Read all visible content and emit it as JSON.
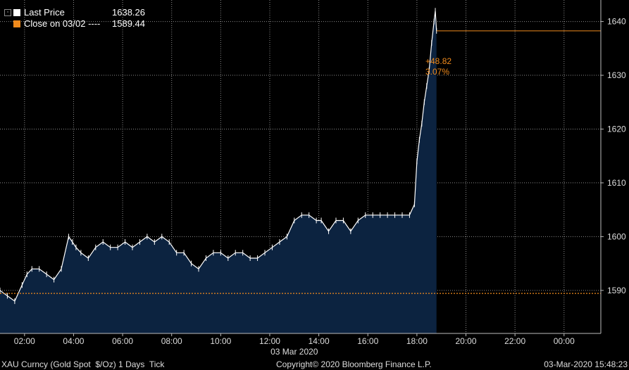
{
  "chart_data": {
    "type": "area",
    "title": "",
    "xlabel": "03 Mar 2020",
    "ylabel": "",
    "ylim": [
      1582,
      1644
    ],
    "y_ticks": [
      1590,
      1600,
      1610,
      1620,
      1630,
      1640
    ],
    "x_ticks": [
      "02:00",
      "04:00",
      "06:00",
      "08:00",
      "10:00",
      "12:00",
      "14:00",
      "16:00",
      "18:00",
      "20:00",
      "22:00",
      "00:00"
    ],
    "x_tick_hours": [
      2,
      4,
      6,
      8,
      10,
      12,
      14,
      16,
      18,
      20,
      22,
      24
    ],
    "xlim_hours": [
      1.0,
      25.5
    ],
    "grid": true,
    "series": [
      {
        "name": "Last Price",
        "color": "#ffffff",
        "fill": "#0c2340",
        "x_hours": [
          1.0,
          1.3,
          1.6,
          1.9,
          2.1,
          2.3,
          2.6,
          2.9,
          3.2,
          3.5,
          3.8,
          3.95,
          4.1,
          4.3,
          4.6,
          4.9,
          5.2,
          5.5,
          5.8,
          6.1,
          6.4,
          6.7,
          7.0,
          7.3,
          7.6,
          7.9,
          8.2,
          8.5,
          8.8,
          9.1,
          9.4,
          9.7,
          10.0,
          10.3,
          10.6,
          10.9,
          11.2,
          11.5,
          11.8,
          12.1,
          12.4,
          12.7,
          13.0,
          13.3,
          13.6,
          13.9,
          14.1,
          14.4,
          14.7,
          15.0,
          15.3,
          15.6,
          15.9,
          16.2,
          16.5,
          16.8,
          17.1,
          17.4,
          17.7,
          17.9,
          18.0,
          18.1,
          18.2,
          18.3,
          18.4,
          18.5,
          18.6,
          18.7,
          18.75,
          18.8
        ],
        "values": [
          1590,
          1589,
          1588,
          1591,
          1593,
          1594,
          1594,
          1593,
          1592,
          1594,
          1600,
          1599,
          1598,
          1597,
          1596,
          1598,
          1599,
          1598,
          1598,
          1599,
          1598,
          1599,
          1600,
          1599,
          1600,
          1599,
          1597,
          1597,
          1595,
          1594,
          1596,
          1597,
          1597,
          1596,
          1597,
          1597,
          1596,
          1596,
          1597,
          1598,
          1599,
          1600,
          1603,
          1604,
          1604,
          1603,
          1603,
          1601,
          1603,
          1603,
          1601,
          1603,
          1604,
          1604,
          1604,
          1604,
          1604,
          1604,
          1604,
          1606,
          1614,
          1618,
          1621,
          1625,
          1628,
          1631,
          1636,
          1640,
          1642,
          1638.26
        ]
      },
      {
        "name": "Close on 03/02",
        "color": "#f08a1c",
        "value": 1589.44
      }
    ]
  },
  "legend": [
    {
      "label": "Last Price",
      "value": "1638.26",
      "color": "#ffffff"
    },
    {
      "label": "Close on 03/02 ----",
      "value": "1589.44",
      "color": "#f08a1c"
    }
  ],
  "annotation": {
    "change": "+48.82",
    "percent": "3.07%"
  },
  "footer": {
    "left": "XAU Curncy (Gold Spot  $/Oz) 1 Days  Tick",
    "center": "Copyright© 2020 Bloomberg Finance L.P.",
    "right": "03-Mar-2020 15:48:23"
  }
}
